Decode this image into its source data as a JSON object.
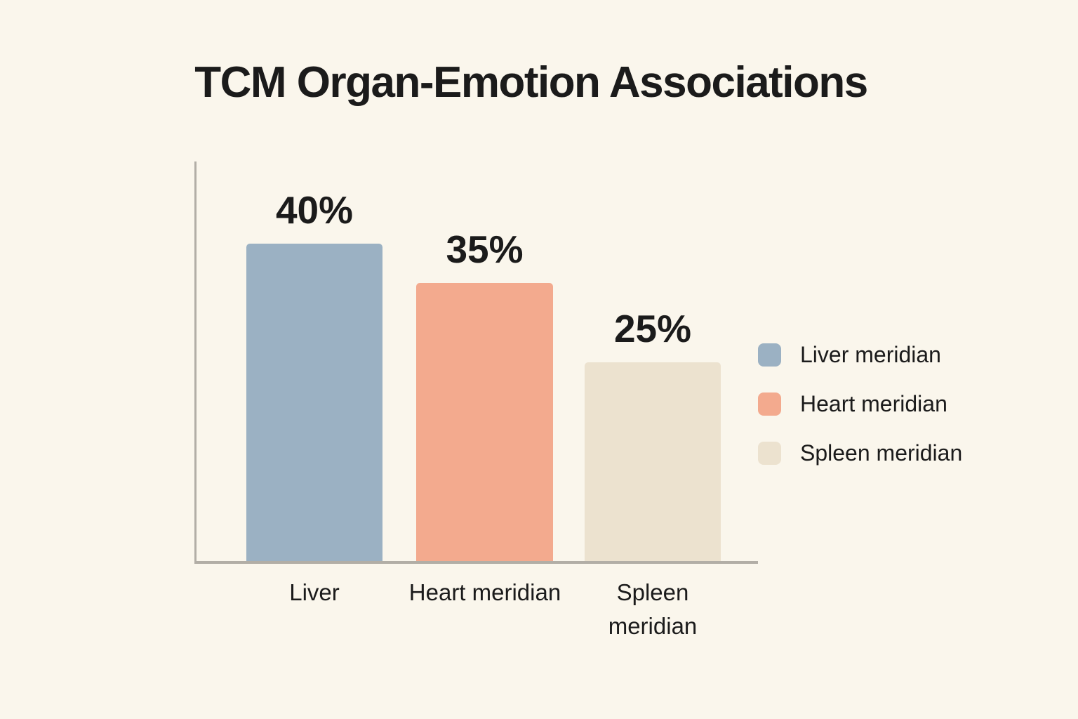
{
  "page": {
    "background_color": "#faf6ec",
    "text_color": "#1b1b1b"
  },
  "chart_data": {
    "type": "bar",
    "title": "TCM Organ-Emotion Associations",
    "categories": [
      "Liver",
      "Heart meridian",
      "Spleen meridian"
    ],
    "values": [
      40,
      35,
      25
    ],
    "value_labels": [
      "40%",
      "35%",
      "25%"
    ],
    "unit": "percent",
    "ylim": [
      0,
      50
    ],
    "grid": false,
    "axis_color": "#b2aea6",
    "bars": [
      {
        "category": "Liver",
        "value": 40,
        "label": "40%",
        "color": "#9bb1c3"
      },
      {
        "category": "Heart meridian",
        "value": 35,
        "label": "35%",
        "color": "#f3aa8e"
      },
      {
        "category": "Spleen meridian",
        "value": 25,
        "label": "25%",
        "color": "#ece2cf"
      }
    ],
    "legend": {
      "position": "right",
      "entries": [
        {
          "label": "Liver meridian",
          "color": "#9bb1c3"
        },
        {
          "label": "Heart meridian",
          "color": "#f3aa8e"
        },
        {
          "label": "Spleen meridian",
          "color": "#ece2cf"
        }
      ]
    }
  }
}
